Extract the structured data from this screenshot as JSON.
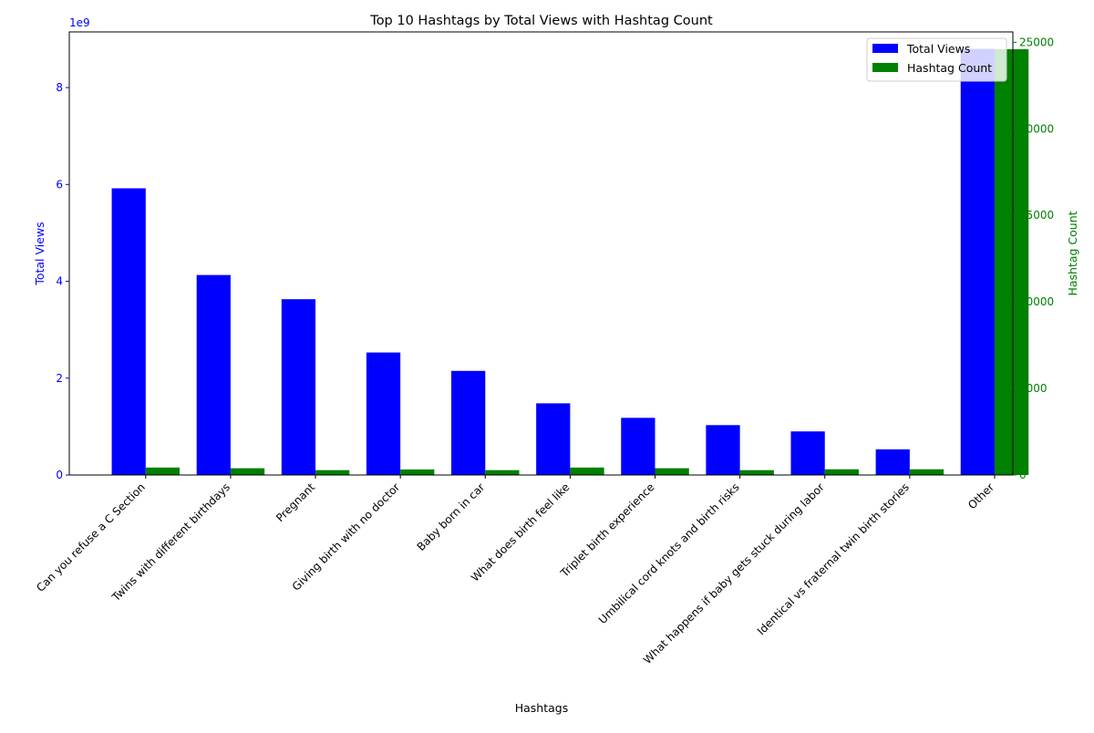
{
  "chart_data": {
    "type": "bar",
    "title": "Top 10 Hashtags by Total Views with Hashtag Count",
    "xlabel": "Hashtags",
    "categories": [
      "Can you refuse a C Section",
      "Twins with different birthdays",
      "Pregnant",
      "Giving birth with no doctor",
      "Baby born in car",
      "What does birth feel like",
      "Triplet birth experience",
      "Umbilical cord knots and birth risks",
      "What happens if baby gets stuck during labor",
      "Identical vs fraternal twin birth stories",
      "Other"
    ],
    "series": [
      {
        "name": "Total Views",
        "axis": "left",
        "color": "#0000ff",
        "values": [
          5920000000.0,
          4130000000.0,
          3630000000.0,
          2530000000.0,
          2150000000.0,
          1480000000.0,
          1180000000.0,
          1030000000.0,
          900000000.0,
          530000000.0,
          8800000000.0
        ]
      },
      {
        "name": "Hashtag Count",
        "axis": "right",
        "color": "#008000",
        "values": [
          430,
          390,
          280,
          320,
          280,
          430,
          390,
          280,
          330,
          330,
          24600
        ]
      }
    ],
    "left_axis": {
      "label": "Total Views",
      "color": "#0000ff",
      "ylim": [
        0,
        9150000000.0
      ],
      "ticks": [
        0,
        2000000000.0,
        4000000000.0,
        6000000000.0,
        8000000000.0
      ],
      "tick_labels": [
        "0",
        "2",
        "4",
        "6",
        "8"
      ],
      "offset_text": "1e9"
    },
    "right_axis": {
      "label": "Hashtag Count",
      "color": "#008000",
      "ylim": [
        0,
        25600
      ],
      "ticks": [
        0,
        5000,
        10000,
        15000,
        20000,
        25000
      ],
      "tick_labels": [
        "0",
        "5000",
        "10000",
        "15000",
        "20000",
        "25000"
      ]
    },
    "legend_position": "top-right",
    "grid": false
  }
}
